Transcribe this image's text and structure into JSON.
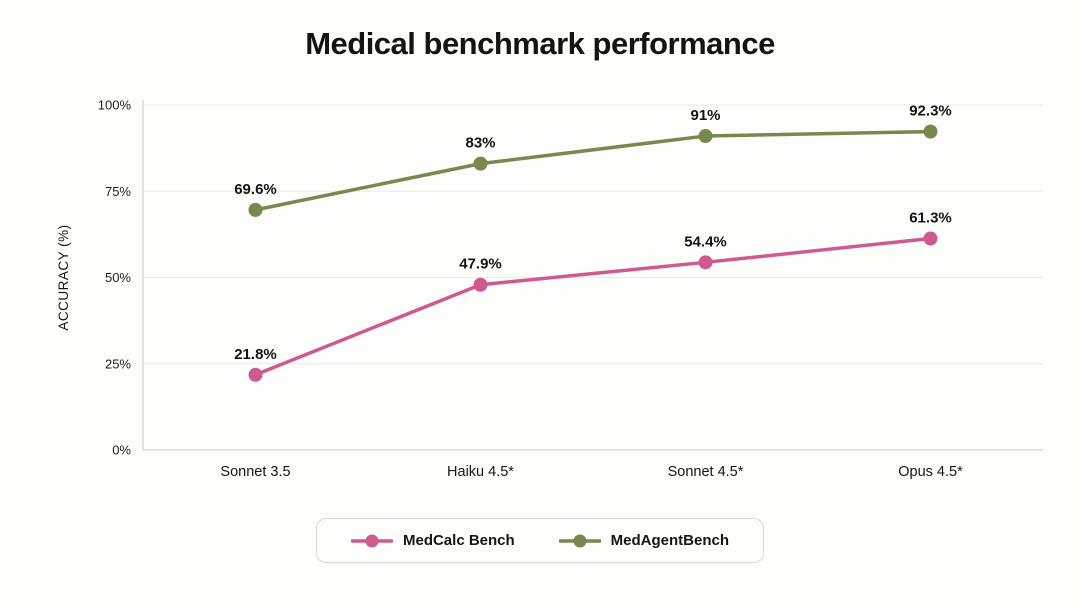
{
  "chart_data": {
    "type": "line",
    "title": "Medical benchmark performance",
    "categories": [
      "Sonnet 3.5",
      "Haiku 4.5*",
      "Sonnet 4.5*",
      "Opus 4.5*"
    ],
    "series": [
      {
        "name": "MedCalc Bench",
        "color": "#cf5a8e",
        "values": [
          21.8,
          47.9,
          54.4,
          61.3
        ],
        "point_labels": [
          "21.8%",
          "47.9%",
          "54.4%",
          "61.3%"
        ]
      },
      {
        "name": "MedAgentBench",
        "color": "#77894d",
        "values": [
          69.6,
          83,
          91,
          92.3
        ],
        "point_labels": [
          "69.6%",
          "83%",
          "91%",
          "92.3%"
        ]
      }
    ],
    "ylabel": "ACCURACY (%)",
    "ylim": [
      0,
      100
    ],
    "yticks": [
      0,
      25,
      50,
      75,
      100
    ],
    "ytick_labels": [
      "0%",
      "25%",
      "50%",
      "75%",
      "100%"
    ],
    "grid": true,
    "legend_position": "bottom"
  }
}
